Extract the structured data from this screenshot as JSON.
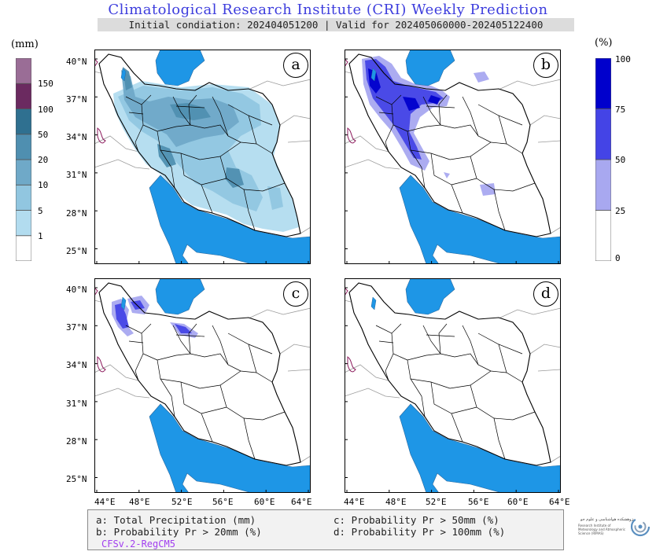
{
  "title": "Climatological Research Institute (CRI) Weekly Prediction",
  "subtitle": "Initial condiation: 202404051200 | Valid for 202405060000-202405122400",
  "left_colorbar": {
    "unit": "(mm)",
    "levels": [
      "1",
      "5",
      "10",
      "20",
      "50",
      "100",
      "150"
    ],
    "colors": [
      "#ffffff",
      "#b2dcef",
      "#91c6e0",
      "#6fa9c8",
      "#4f8fb0",
      "#2f7090",
      "#6b2a60",
      "#9a6d96"
    ]
  },
  "right_colorbar": {
    "unit": "(%)",
    "levels": [
      "0",
      "25",
      "50",
      "75",
      "100"
    ],
    "colors": [
      "#ffffff",
      "#a8a8f0",
      "#4444e6",
      "#0000cc"
    ]
  },
  "lat_labels": [
    "40°N",
    "37°N",
    "34°N",
    "31°N",
    "28°N",
    "25°N"
  ],
  "lon_labels": [
    "44°E",
    "48°E",
    "52°E",
    "56°E",
    "60°E",
    "64°E"
  ],
  "panels": [
    {
      "letter": "a",
      "field": "total-precipitation"
    },
    {
      "letter": "b",
      "field": "prob-20mm"
    },
    {
      "letter": "c",
      "field": "prob-50mm"
    },
    {
      "letter": "d",
      "field": "prob-100mm"
    }
  ],
  "legend": {
    "a": "a: Total Precipitation (mm)",
    "b": "b: Probability Pr > 20mm (%)",
    "c": "c: Probability Pr > 50mm (%)",
    "d": "d: Probability Pr > 100mm (%)",
    "model": "CFSv.2-RegCM5"
  },
  "logo": {
    "text_fa": "پژوهشکده هواشناسی و علوم جو",
    "text_en": "Research Institute of Meteorology and Atmospheric Science (RIMAS)",
    "icon": "swirl-logo-icon"
  },
  "colors": {
    "sea": "#1e96e6",
    "land_border": "#000000",
    "neighbor_border": "#9a9a9a",
    "coast_magenta": "#8b1a5c",
    "title": "#3d3ddd"
  }
}
